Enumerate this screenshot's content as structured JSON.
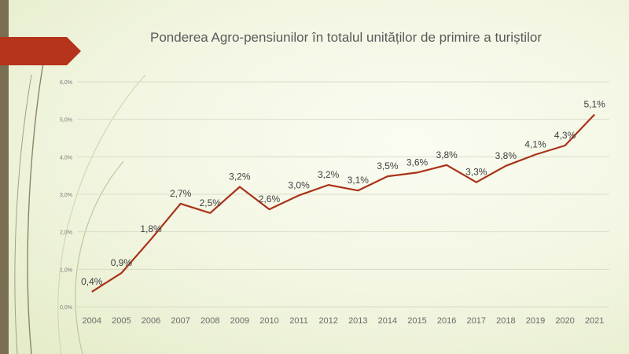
{
  "slide": {
    "colors": {
      "left_bar": "#7a6f52",
      "tab": "#b5341b",
      "line": "#a83218",
      "text": "#595959",
      "grid": "#d9dcc6"
    }
  },
  "chart_data": {
    "type": "line",
    "title": "Ponderea Agro-pensiunilor în totalul unităților de primire a turiștilor",
    "xlabel": "",
    "ylabel": "",
    "categories": [
      "2004",
      "2005",
      "2006",
      "2007",
      "2008",
      "2009",
      "2010",
      "2011",
      "2012",
      "2013",
      "2014",
      "2015",
      "2016",
      "2017",
      "2018",
      "2019",
      "2020",
      "2021"
    ],
    "values": [
      0.4,
      0.9,
      1.8,
      2.75,
      2.5,
      3.2,
      2.6,
      2.97,
      3.25,
      3.1,
      3.48,
      3.58,
      3.78,
      3.32,
      3.76,
      4.06,
      4.3,
      5.13
    ],
    "data_labels": [
      "0,4%",
      "0,9%",
      "1,8%",
      "2,7%",
      "2,5%",
      "3,2%",
      "2,6%",
      "3,0%",
      "3,2%",
      "3,1%",
      "3,5%",
      "3,6%",
      "3,8%",
      "3,3%",
      "3,8%",
      "4,1%",
      "4,3%",
      "5,1%"
    ],
    "ylim": [
      0,
      6
    ],
    "yticks": [
      "0,0%",
      "1,0%",
      "2,0%",
      "3,0%",
      "4,0%",
      "5,0%",
      "6,0%"
    ],
    "grid": true,
    "legend": "none"
  }
}
